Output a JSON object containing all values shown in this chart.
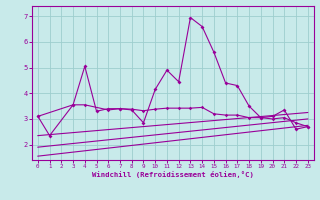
{
  "xlabel": "Windchill (Refroidissement éolien,°C)",
  "x": [
    0,
    1,
    2,
    3,
    4,
    5,
    6,
    7,
    8,
    9,
    10,
    11,
    12,
    13,
    14,
    15,
    16,
    17,
    18,
    19,
    20,
    21,
    22,
    23
  ],
  "line1": [
    3.1,
    2.35,
    null,
    3.55,
    5.05,
    3.3,
    3.4,
    3.4,
    3.35,
    2.85,
    4.15,
    4.9,
    4.45,
    6.95,
    6.6,
    5.6,
    4.4,
    4.3,
    3.5,
    3.05,
    3.1,
    3.35,
    2.6,
    2.7
  ],
  "line2_x": [
    0,
    3,
    4,
    6,
    7,
    8,
    9,
    10,
    11,
    12,
    13,
    14,
    15,
    16,
    17,
    18,
    19,
    20,
    21,
    22,
    23
  ],
  "line2_y": [
    3.1,
    3.55,
    3.55,
    3.35,
    3.4,
    3.38,
    3.32,
    3.38,
    3.42,
    3.42,
    3.42,
    3.45,
    3.2,
    3.15,
    3.15,
    3.05,
    3.05,
    3.0,
    3.05,
    2.85,
    2.7
  ],
  "line3_x": [
    0,
    23
  ],
  "line3_y": [
    2.35,
    3.25
  ],
  "line4_x": [
    0,
    23
  ],
  "line4_y": [
    1.9,
    3.0
  ],
  "line5_x": [
    0,
    23
  ],
  "line5_y": [
    1.55,
    2.75
  ],
  "color": "#990099",
  "bg_color": "#c8eaea",
  "grid_color": "#9ecece",
  "ylim": [
    1.4,
    7.4
  ],
  "xlim": [
    -0.5,
    23.5
  ],
  "yticks": [
    2,
    3,
    4,
    5,
    6,
    7
  ],
  "xticks": [
    0,
    1,
    2,
    3,
    4,
    5,
    6,
    7,
    8,
    9,
    10,
    11,
    12,
    13,
    14,
    15,
    16,
    17,
    18,
    19,
    20,
    21,
    22,
    23
  ]
}
